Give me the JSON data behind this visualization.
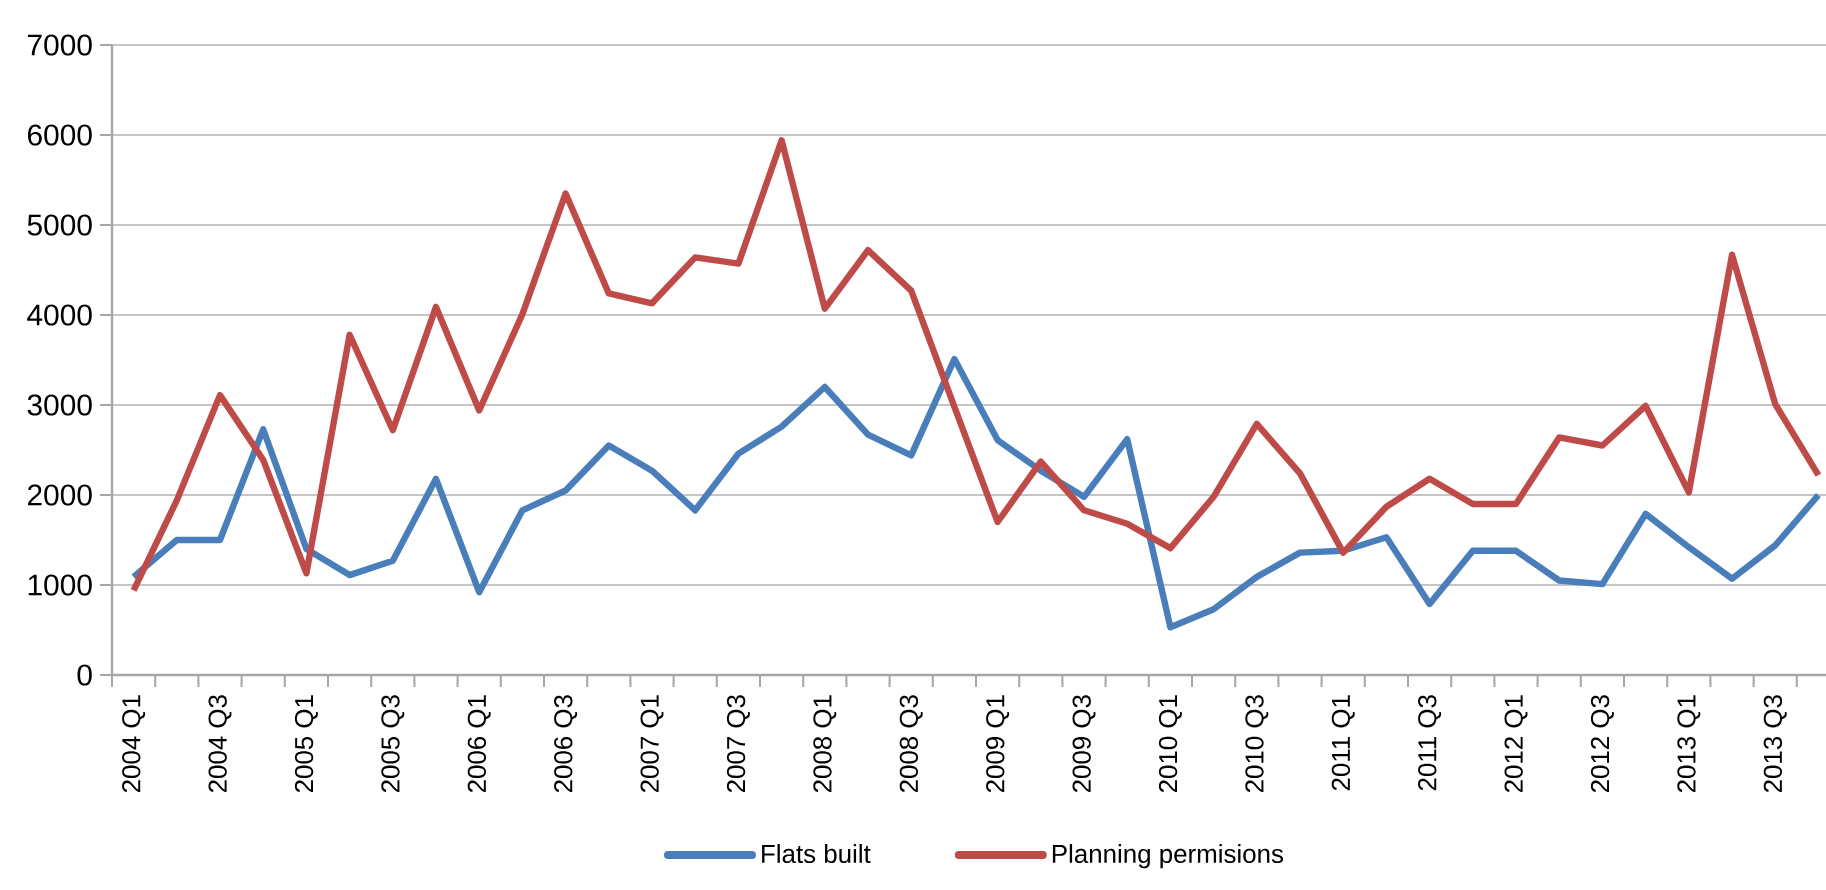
{
  "chart_data": {
    "type": "line",
    "categories": [
      "2004 Q1",
      null,
      "2004 Q3",
      null,
      "2005 Q1",
      null,
      "2005 Q3",
      null,
      "2006 Q1",
      null,
      "2006 Q3",
      null,
      "2007 Q1",
      null,
      "2007 Q3",
      null,
      "2008 Q1",
      null,
      "2008 Q3",
      null,
      "2009 Q1",
      null,
      "2009 Q3",
      null,
      "2010 Q1",
      null,
      "2010 Q3",
      null,
      "2011 Q1",
      null,
      "2011 Q3",
      null,
      "2012 Q1",
      null,
      "2012 Q3",
      null,
      "2013 Q1",
      null,
      "2013 Q3",
      null
    ],
    "series": [
      {
        "name": "Flats built",
        "color": "#4a7ebb",
        "values": [
          1090,
          1500,
          1500,
          2730,
          1400,
          1110,
          1270,
          2180,
          920,
          1830,
          2050,
          2550,
          2270,
          1830,
          2460,
          2760,
          3200,
          2670,
          2440,
          3510,
          2610,
          2270,
          1980,
          2620,
          530,
          730,
          1090,
          1360,
          1380,
          1530,
          790,
          1380,
          1380,
          1050,
          1010,
          1790,
          1420,
          1070,
          1440,
          2000
        ]
      },
      {
        "name": "Planning permisions",
        "color": "#be4b48",
        "values": [
          940,
          1940,
          3110,
          2390,
          1130,
          3780,
          2720,
          4090,
          2940,
          4010,
          5350,
          4240,
          4130,
          4640,
          4570,
          5940,
          4070,
          4720,
          4270,
          2980,
          1700,
          2370,
          1830,
          1680,
          1410,
          1980,
          2790,
          2240,
          1360,
          1870,
          2180,
          1900,
          1900,
          2640,
          2550,
          2990,
          2030,
          4670,
          3010,
          2220
        ]
      }
    ],
    "ylim": [
      0,
      7000
    ],
    "yticks": [
      0,
      1000,
      2000,
      3000,
      4000,
      5000,
      6000,
      7000
    ],
    "grid": "y",
    "legend": "bottom",
    "marker": "none",
    "line_style": "solid"
  }
}
